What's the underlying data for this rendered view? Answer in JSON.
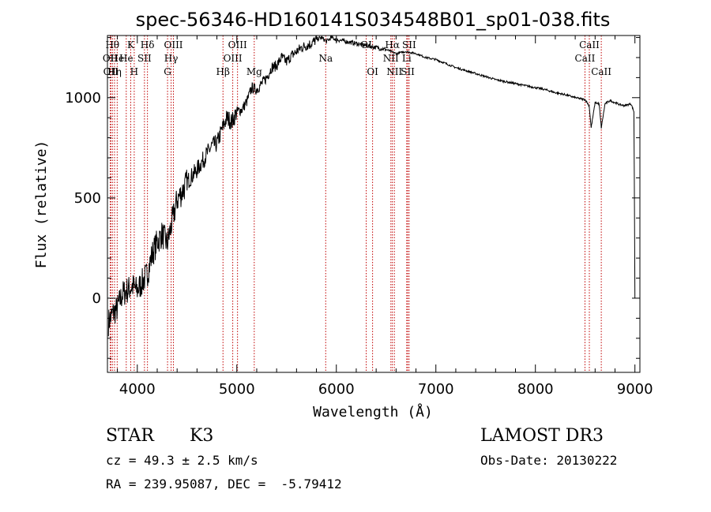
{
  "info": {
    "object_class": "STAR",
    "subclass": "K3",
    "survey": "LAMOST DR3",
    "cz_text": "cz = 49.3 ± 2.5 km/s",
    "obs_date": "Obs-Date: 20130222",
    "coords_text": "RA = 239.95087, DEC =  -5.79412"
  },
  "chart_data": {
    "type": "line",
    "title": "spec-56346-HD160141S034548B01_sp01-038.fits",
    "xlabel": "Wavelength (Å)",
    "ylabel": "Flux (relative)",
    "xlim": [
      3700,
      9050
    ],
    "ylim": [
      -370,
      1310
    ],
    "x_ticks": [
      4000,
      5000,
      6000,
      7000,
      8000,
      9000
    ],
    "x_tick_labels": [
      "4000",
      "5000",
      "6000",
      "7000",
      "8000",
      "9000"
    ],
    "y_ticks": [
      0,
      500,
      1000
    ],
    "y_tick_labels": [
      "0",
      "500",
      "1000"
    ],
    "series": [
      {
        "name": "spectrum",
        "color": "#000000",
        "x": [
          3710,
          3750,
          3800,
          3850,
          3900,
          3950,
          4000,
          4050,
          4100,
          4150,
          4200,
          4250,
          4300,
          4350,
          4400,
          4450,
          4500,
          4550,
          4600,
          4650,
          4700,
          4750,
          4800,
          4850,
          4900,
          4950,
          5000,
          5050,
          5100,
          5150,
          5200,
          5250,
          5300,
          5350,
          5400,
          5450,
          5500,
          5550,
          5600,
          5650,
          5700,
          5750,
          5800,
          5850,
          5900,
          5950,
          6000,
          6100,
          6200,
          6300,
          6400,
          6500,
          6600,
          6700,
          6800,
          6900,
          7000,
          7100,
          7200,
          7300,
          7400,
          7500,
          7600,
          7700,
          7800,
          7900,
          8000,
          8100,
          8200,
          8300,
          8400,
          8500,
          8540,
          8560,
          8600,
          8640,
          8662,
          8700,
          8750,
          8800,
          8850,
          8900,
          8960,
          8990,
          9000
        ],
        "y": [
          -120,
          -80,
          -50,
          20,
          40,
          60,
          40,
          80,
          120,
          220,
          280,
          320,
          270,
          380,
          490,
          530,
          580,
          610,
          640,
          680,
          720,
          760,
          770,
          840,
          900,
          880,
          930,
          940,
          980,
          1050,
          1040,
          1070,
          1100,
          1150,
          1160,
          1200,
          1180,
          1210,
          1230,
          1250,
          1260,
          1270,
          1290,
          1300,
          1280,
          1300,
          1290,
          1280,
          1270,
          1260,
          1250,
          1240,
          1220,
          1230,
          1220,
          1200,
          1190,
          1170,
          1150,
          1135,
          1120,
          1105,
          1090,
          1080,
          1070,
          1060,
          1050,
          1040,
          1025,
          1015,
          1000,
          990,
          960,
          850,
          975,
          970,
          850,
          970,
          985,
          975,
          965,
          960,
          970,
          930,
          0
        ]
      }
    ],
    "reference_lines": [
      {
        "wavelength": 3728,
        "label": "OII",
        "row": 2
      },
      {
        "wavelength": 3734,
        "label": "OII",
        "row": 3
      },
      {
        "wavelength": 3750,
        "label": "Hθ",
        "row": 1
      },
      {
        "wavelength": 3771,
        "label": "Hη",
        "row": 3
      },
      {
        "wavelength": 3798,
        "label": "He",
        "row": 2
      },
      {
        "wavelength": 3889,
        "label": "He",
        "row": 2
      },
      {
        "wavelength": 3934,
        "label": "K",
        "row": 1
      },
      {
        "wavelength": 3969,
        "label": "H",
        "row": 3
      },
      {
        "wavelength": 4072,
        "label": "SII",
        "row": 2
      },
      {
        "wavelength": 4102,
        "label": "Hδ",
        "row": 1
      },
      {
        "wavelength": 4304,
        "label": "G",
        "row": 3
      },
      {
        "wavelength": 4340,
        "label": "Hγ",
        "row": 2
      },
      {
        "wavelength": 4363,
        "label": "OIII",
        "row": 1
      },
      {
        "wavelength": 4861,
        "label": "Hβ",
        "row": 3
      },
      {
        "wavelength": 4959,
        "label": "OIII",
        "row": 2
      },
      {
        "wavelength": 5007,
        "label": "OIII",
        "row": 1
      },
      {
        "wavelength": 5175,
        "label": "Mg",
        "row": 3
      },
      {
        "wavelength": 5893,
        "label": "Na",
        "row": 2
      },
      {
        "wavelength": 6300,
        "label": "OI",
        "row": 1
      },
      {
        "wavelength": 6364,
        "label": "OI",
        "row": 3
      },
      {
        "wavelength": 6548,
        "label": "NII",
        "row": 2
      },
      {
        "wavelength": 6563,
        "label": "Hα",
        "row": 1
      },
      {
        "wavelength": 6583,
        "label": "NII",
        "row": 3
      },
      {
        "wavelength": 6707,
        "label": "Li",
        "row": 2
      },
      {
        "wavelength": 6717,
        "label": "SII",
        "row": 3
      },
      {
        "wavelength": 6731,
        "label": "SII",
        "row": 1
      },
      {
        "wavelength": 8498,
        "label": "CaII",
        "row": 2
      },
      {
        "wavelength": 8542,
        "label": "CaII",
        "row": 1
      },
      {
        "wavelength": 8662,
        "label": "CaII",
        "row": 3
      }
    ]
  }
}
